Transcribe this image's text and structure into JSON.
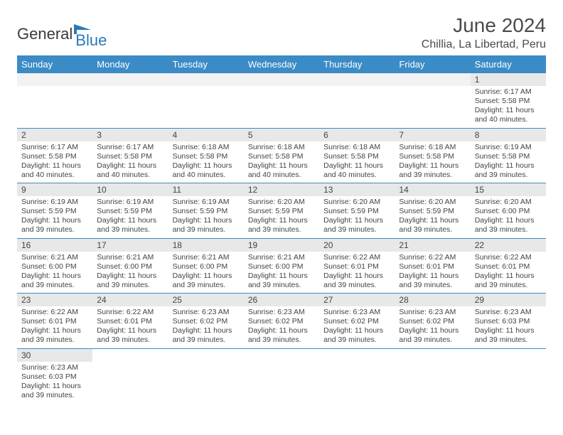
{
  "brand": {
    "part1": "General",
    "part2": "Blue"
  },
  "title": "June 2024",
  "location": "Chillia, La Libertad, Peru",
  "colors": {
    "header_bg": "#3b8bc6",
    "header_text": "#ffffff",
    "daynum_bg": "#e8e8e8",
    "row_border": "#3b8bc6",
    "text": "#444444",
    "brand_blue": "#2a7ab8"
  },
  "weekdays": [
    "Sunday",
    "Monday",
    "Tuesday",
    "Wednesday",
    "Thursday",
    "Friday",
    "Saturday"
  ],
  "startOffset": 6,
  "days": [
    {
      "n": 1,
      "sr": "6:17 AM",
      "ss": "5:58 PM",
      "dl": "11 hours and 40 minutes."
    },
    {
      "n": 2,
      "sr": "6:17 AM",
      "ss": "5:58 PM",
      "dl": "11 hours and 40 minutes."
    },
    {
      "n": 3,
      "sr": "6:17 AM",
      "ss": "5:58 PM",
      "dl": "11 hours and 40 minutes."
    },
    {
      "n": 4,
      "sr": "6:18 AM",
      "ss": "5:58 PM",
      "dl": "11 hours and 40 minutes."
    },
    {
      "n": 5,
      "sr": "6:18 AM",
      "ss": "5:58 PM",
      "dl": "11 hours and 40 minutes."
    },
    {
      "n": 6,
      "sr": "6:18 AM",
      "ss": "5:58 PM",
      "dl": "11 hours and 40 minutes."
    },
    {
      "n": 7,
      "sr": "6:18 AM",
      "ss": "5:58 PM",
      "dl": "11 hours and 39 minutes."
    },
    {
      "n": 8,
      "sr": "6:19 AM",
      "ss": "5:58 PM",
      "dl": "11 hours and 39 minutes."
    },
    {
      "n": 9,
      "sr": "6:19 AM",
      "ss": "5:59 PM",
      "dl": "11 hours and 39 minutes."
    },
    {
      "n": 10,
      "sr": "6:19 AM",
      "ss": "5:59 PM",
      "dl": "11 hours and 39 minutes."
    },
    {
      "n": 11,
      "sr": "6:19 AM",
      "ss": "5:59 PM",
      "dl": "11 hours and 39 minutes."
    },
    {
      "n": 12,
      "sr": "6:20 AM",
      "ss": "5:59 PM",
      "dl": "11 hours and 39 minutes."
    },
    {
      "n": 13,
      "sr": "6:20 AM",
      "ss": "5:59 PM",
      "dl": "11 hours and 39 minutes."
    },
    {
      "n": 14,
      "sr": "6:20 AM",
      "ss": "5:59 PM",
      "dl": "11 hours and 39 minutes."
    },
    {
      "n": 15,
      "sr": "6:20 AM",
      "ss": "6:00 PM",
      "dl": "11 hours and 39 minutes."
    },
    {
      "n": 16,
      "sr": "6:21 AM",
      "ss": "6:00 PM",
      "dl": "11 hours and 39 minutes."
    },
    {
      "n": 17,
      "sr": "6:21 AM",
      "ss": "6:00 PM",
      "dl": "11 hours and 39 minutes."
    },
    {
      "n": 18,
      "sr": "6:21 AM",
      "ss": "6:00 PM",
      "dl": "11 hours and 39 minutes."
    },
    {
      "n": 19,
      "sr": "6:21 AM",
      "ss": "6:00 PM",
      "dl": "11 hours and 39 minutes."
    },
    {
      "n": 20,
      "sr": "6:22 AM",
      "ss": "6:01 PM",
      "dl": "11 hours and 39 minutes."
    },
    {
      "n": 21,
      "sr": "6:22 AM",
      "ss": "6:01 PM",
      "dl": "11 hours and 39 minutes."
    },
    {
      "n": 22,
      "sr": "6:22 AM",
      "ss": "6:01 PM",
      "dl": "11 hours and 39 minutes."
    },
    {
      "n": 23,
      "sr": "6:22 AM",
      "ss": "6:01 PM",
      "dl": "11 hours and 39 minutes."
    },
    {
      "n": 24,
      "sr": "6:22 AM",
      "ss": "6:01 PM",
      "dl": "11 hours and 39 minutes."
    },
    {
      "n": 25,
      "sr": "6:23 AM",
      "ss": "6:02 PM",
      "dl": "11 hours and 39 minutes."
    },
    {
      "n": 26,
      "sr": "6:23 AM",
      "ss": "6:02 PM",
      "dl": "11 hours and 39 minutes."
    },
    {
      "n": 27,
      "sr": "6:23 AM",
      "ss": "6:02 PM",
      "dl": "11 hours and 39 minutes."
    },
    {
      "n": 28,
      "sr": "6:23 AM",
      "ss": "6:02 PM",
      "dl": "11 hours and 39 minutes."
    },
    {
      "n": 29,
      "sr": "6:23 AM",
      "ss": "6:03 PM",
      "dl": "11 hours and 39 minutes."
    },
    {
      "n": 30,
      "sr": "6:23 AM",
      "ss": "6:03 PM",
      "dl": "11 hours and 39 minutes."
    }
  ],
  "labels": {
    "sunrise": "Sunrise:",
    "sunset": "Sunset:",
    "daylight": "Daylight:"
  }
}
